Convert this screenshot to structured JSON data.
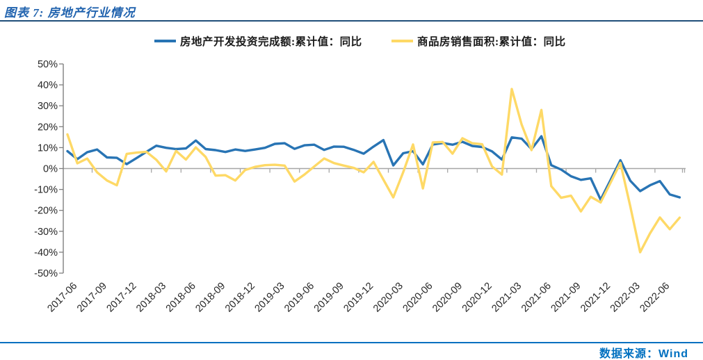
{
  "title": "图表 7: 房地产行业情况",
  "footer": {
    "source_label": "数据来源：Wind"
  },
  "colors": {
    "title_text": "#2163AE",
    "top_rule": "#1F4E79",
    "footer_rule": "#0070C0",
    "footer_text": "#0070C0",
    "axis_line": "#7F7F7F",
    "zero_gridline": "#A6A6A6",
    "tick_label": "#262626",
    "series_investment": "#2874B4",
    "series_sales": "#FED966"
  },
  "chart_data": {
    "type": "line",
    "title": "图表 7: 房地产行业情况",
    "start_month": "2017-06",
    "months_count": 63,
    "y_axis": {
      "min": -50,
      "max": 50,
      "step": 10,
      "unit": "%"
    },
    "y_tick_labels": [
      "50%",
      "40%",
      "30%",
      "20%",
      "10%",
      "0%",
      "-10%",
      "-20%",
      "-30%",
      "-40%",
      "-50%"
    ],
    "x_tick_labels": [
      "2017-06",
      "2017-09",
      "2017-12",
      "2018-03",
      "2018-06",
      "2018-09",
      "2018-12",
      "2019-03",
      "2019-06",
      "2019-09",
      "2019-12",
      "2020-03",
      "2020-06",
      "2020-09",
      "2020-12",
      "2021-03",
      "2021-06",
      "2021-09",
      "2021-12",
      "2022-03",
      "2022-06"
    ],
    "legend_position": "top-center",
    "grid": "zero-line-only",
    "series": [
      {
        "name": "房地产开发投资完成额:累计值：同比",
        "color": "#2874B4",
        "values": [
          8.3,
          4.5,
          7.8,
          9.1,
          5.3,
          5.1,
          2.1,
          5.0,
          8.0,
          10.9,
          9.9,
          9.3,
          9.6,
          13.4,
          9.3,
          8.8,
          7.9,
          9.1,
          8.4,
          9.1,
          9.9,
          11.8,
          12.1,
          9.4,
          11.1,
          11.4,
          8.9,
          10.5,
          10.4,
          8.9,
          7.1,
          10.5,
          13.6,
          1.5,
          7.3,
          8.3,
          2.0,
          11.5,
          12.2,
          11.4,
          12.8,
          10.8,
          10.3,
          8.2,
          4.3,
          14.9,
          14.3,
          9.3,
          15.4,
          1.6,
          -0.5,
          -3.7,
          -5.4,
          -4.7,
          -14.9,
          -5.5,
          4.0,
          -5.8,
          -10.8,
          -8.0,
          -6.0,
          -12.4,
          -13.8
        ]
      },
      {
        "name": "商品房销售面积:累计值：同比",
        "color": "#FED966",
        "values": [
          16.3,
          2.5,
          4.8,
          -1.8,
          -5.7,
          -8.0,
          7.0,
          7.6,
          8.0,
          4.2,
          -1.4,
          8.4,
          4.3,
          10.1,
          5.5,
          -3.4,
          -3.2,
          -5.7,
          -0.7,
          0.8,
          1.6,
          1.8,
          1.4,
          -6.2,
          -2.9,
          1.0,
          4.8,
          2.6,
          1.4,
          0.3,
          -1.8,
          3.2,
          -5.3,
          -13.8,
          -1.8,
          11.5,
          -9.5,
          12.5,
          12.7,
          7.1,
          14.5,
          12.1,
          11.6,
          1.0,
          -2.9,
          38.0,
          21.0,
          8.8,
          28.0,
          -8.4,
          -14.0,
          -13.0,
          -20.5,
          -13.5,
          -16.2,
          -6.8,
          2.7,
          -18.0,
          -40.0,
          -31.0,
          -23.4,
          -29.0,
          -23.5
        ]
      }
    ]
  }
}
